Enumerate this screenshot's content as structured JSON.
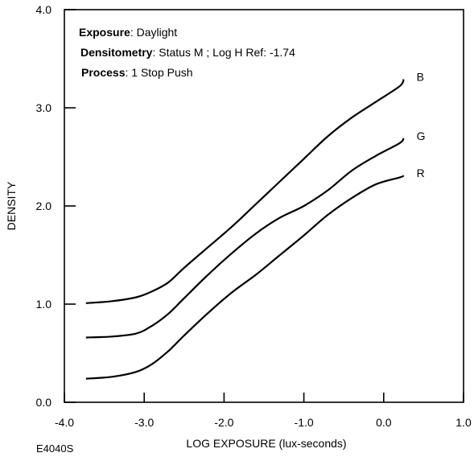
{
  "chart_data": {
    "type": "line",
    "title": "",
    "xlabel": "LOG EXPOSURE (lux-seconds)",
    "ylabel": "DENSITY",
    "xlim": [
      -4.0,
      1.0
    ],
    "ylim": [
      0.0,
      4.0
    ],
    "xticks": [
      "-4.0",
      "-3.0",
      "-2.0",
      "-1.0",
      "0.0",
      "1.0"
    ],
    "yticks": [
      "0.0",
      "1.0",
      "2.0",
      "3.0",
      "4.0"
    ],
    "grid": false,
    "figure_code": "E4040S",
    "annotations": [
      {
        "key": "Exposure",
        "value": ": Daylight"
      },
      {
        "key": "Densitometry",
        "value": ": Status M ; Log H Ref: -1.74"
      },
      {
        "key": "Process",
        "value": ": 1 Stop Push"
      }
    ],
    "series": [
      {
        "name": "B",
        "x": [
          -3.73,
          -3.4,
          -3.1,
          -2.9,
          -2.7,
          -2.5,
          -2.2,
          -1.9,
          -1.6,
          -1.3,
          -1.0,
          -0.7,
          -0.4,
          -0.1,
          0.2,
          0.25
        ],
        "y": [
          1.01,
          1.03,
          1.07,
          1.13,
          1.22,
          1.37,
          1.58,
          1.79,
          2.02,
          2.25,
          2.48,
          2.71,
          2.9,
          3.06,
          3.22,
          3.29
        ]
      },
      {
        "name": "G",
        "x": [
          -3.73,
          -3.4,
          -3.1,
          -2.9,
          -2.7,
          -2.5,
          -2.2,
          -1.9,
          -1.6,
          -1.3,
          -1.0,
          -0.7,
          -0.4,
          -0.1,
          0.2,
          0.25
        ],
        "y": [
          0.66,
          0.67,
          0.7,
          0.78,
          0.9,
          1.06,
          1.3,
          1.52,
          1.72,
          1.88,
          2.0,
          2.16,
          2.36,
          2.51,
          2.64,
          2.69
        ]
      },
      {
        "name": "R",
        "x": [
          -3.73,
          -3.4,
          -3.1,
          -2.9,
          -2.7,
          -2.5,
          -2.2,
          -1.9,
          -1.6,
          -1.3,
          -1.0,
          -0.7,
          -0.4,
          -0.1,
          0.2,
          0.25
        ],
        "y": [
          0.24,
          0.26,
          0.31,
          0.39,
          0.52,
          0.68,
          0.91,
          1.12,
          1.3,
          1.5,
          1.7,
          1.91,
          2.08,
          2.22,
          2.29,
          2.31
        ]
      }
    ]
  }
}
